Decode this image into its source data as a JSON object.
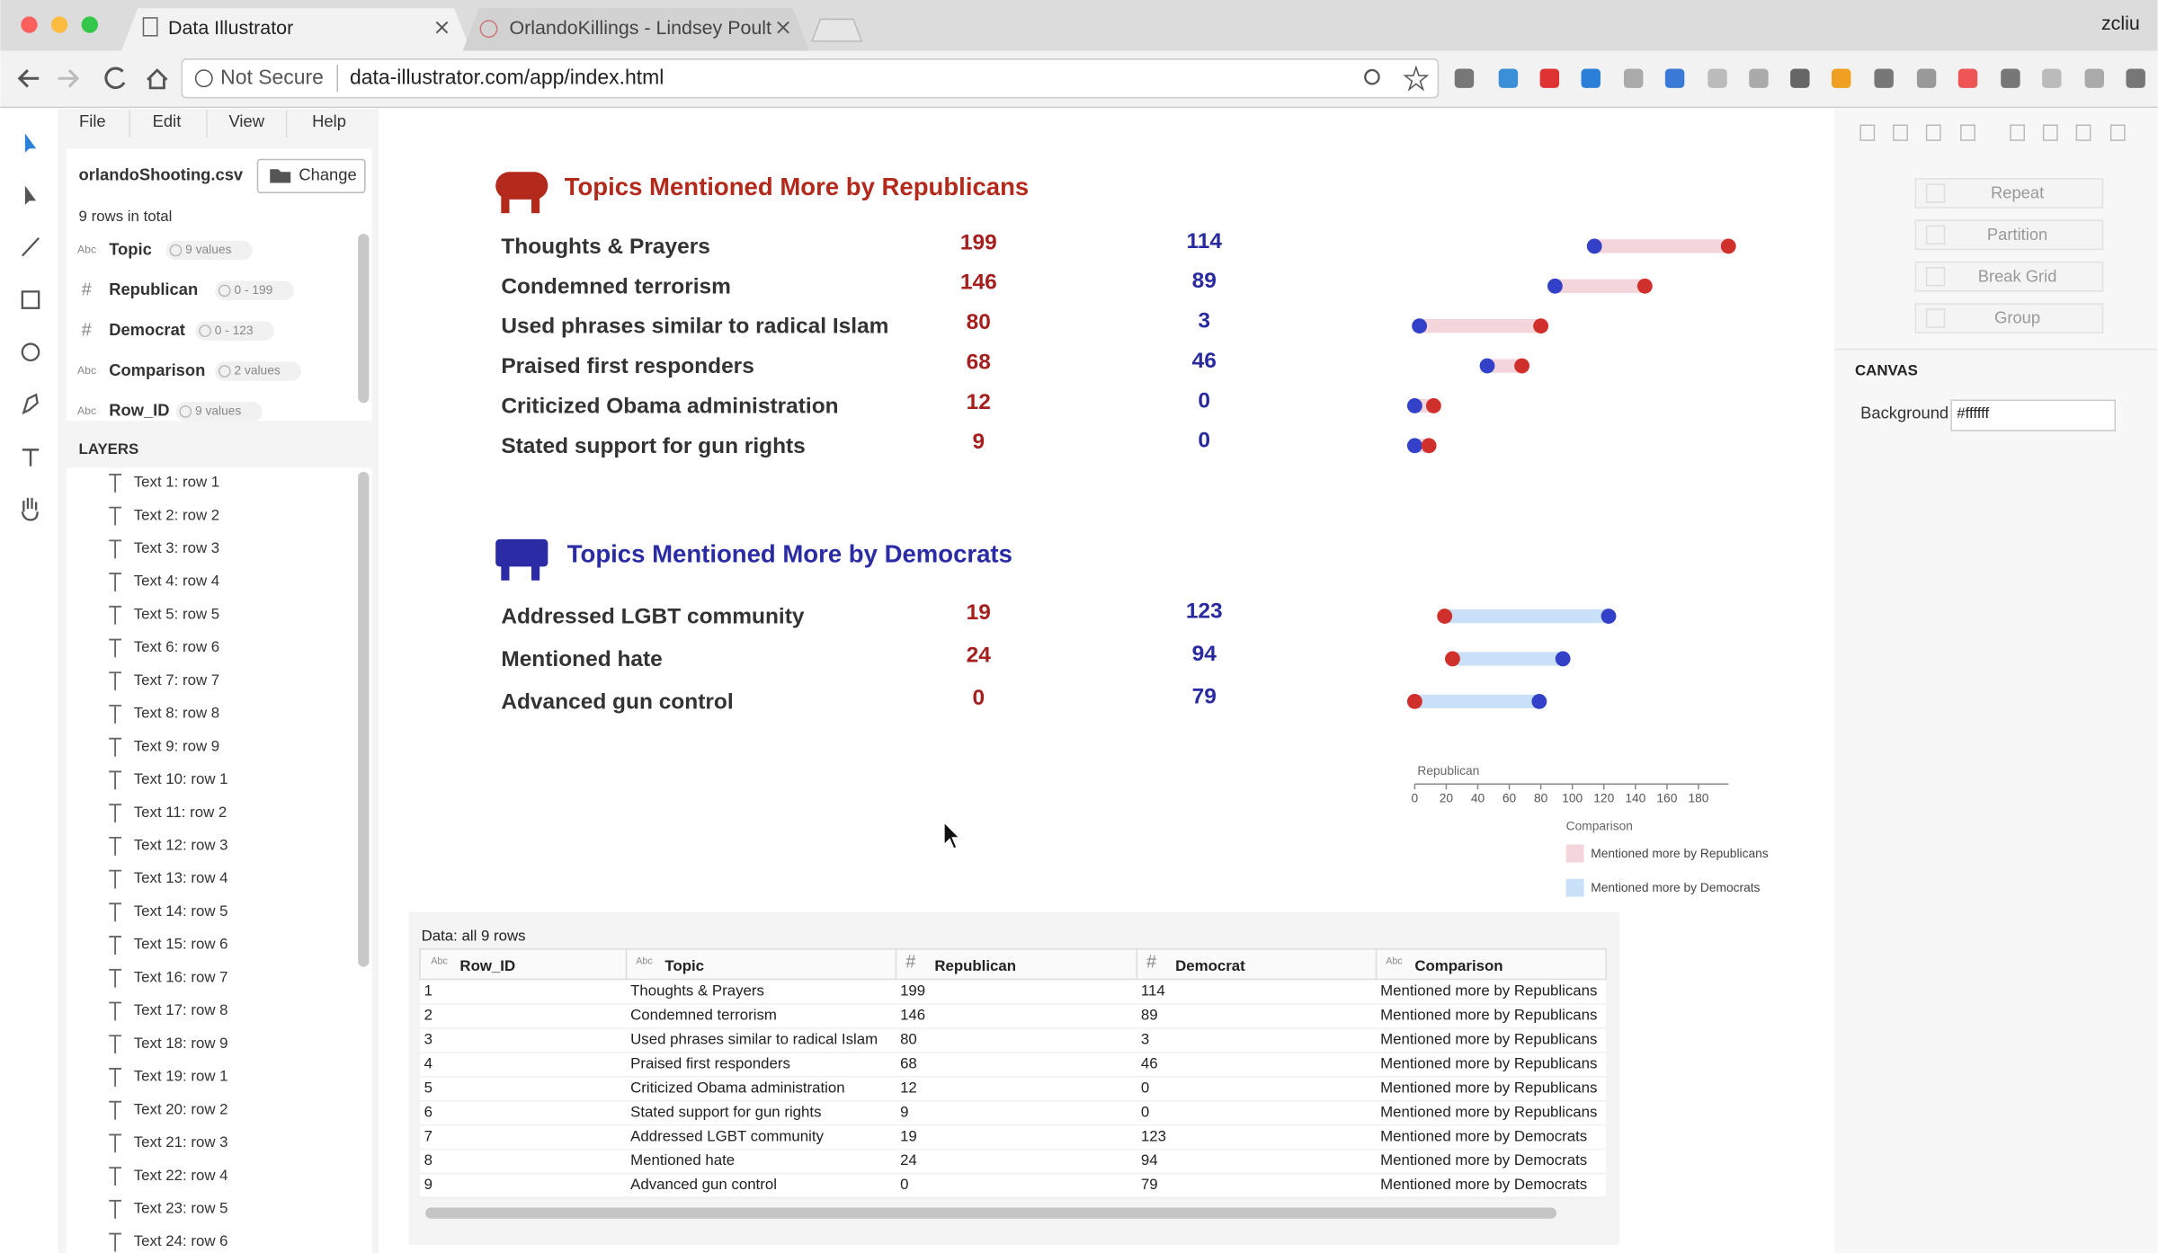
{
  "browser": {
    "tabs": [
      "Data Illustrator",
      "OrlandoKillings - Lindsey Poult"
    ],
    "user": "zcliu",
    "security": "Not Secure",
    "url": "data-illustrator.com/app/index.html"
  },
  "menu": [
    "File",
    "Edit",
    "View",
    "Help"
  ],
  "dataset": {
    "file": "orlandoShooting.csv",
    "change": "Change",
    "summary": "9 rows in total",
    "fields": [
      {
        "type": "Abc",
        "name": "Topic",
        "info": "9 values"
      },
      {
        "type": "#",
        "name": "Republican",
        "info": "0 - 199"
      },
      {
        "type": "#",
        "name": "Democrat",
        "info": "0 - 123"
      },
      {
        "type": "Abc",
        "name": "Comparison",
        "info": "2 values"
      },
      {
        "type": "Abc",
        "name": "Row_ID",
        "info": "9 values"
      }
    ]
  },
  "layers": {
    "title": "LAYERS",
    "items": [
      "Text 1: row 1",
      "Text 2: row 2",
      "Text 3: row 3",
      "Text 4: row 4",
      "Text 5: row 5",
      "Text 6: row 6",
      "Text 7: row 7",
      "Text 8: row 8",
      "Text 9: row 9",
      "Text 10: row 1",
      "Text 11: row 2",
      "Text 12: row 3",
      "Text 13: row 4",
      "Text 14: row 5",
      "Text 15: row 6",
      "Text 16: row 7",
      "Text 17: row 8",
      "Text 18: row 9",
      "Text 19: row 1",
      "Text 20: row 2",
      "Text 21: row 3",
      "Text 22: row 4",
      "Text 23: row 5",
      "Text 24: row 6"
    ]
  },
  "canvas": {
    "groups": [
      {
        "title": "Topics Mentioned More by Republicans",
        "color": "#b32a1c",
        "bar_color": "#f5d5dc",
        "rows": [
          {
            "topic": "Thoughts & Prayers",
            "republican": 199,
            "democrat": 114
          },
          {
            "topic": "Condemned terrorism",
            "republican": 146,
            "democrat": 89
          },
          {
            "topic": "Used phrases similar to radical Islam",
            "republican": 80,
            "democrat": 3
          },
          {
            "topic": "Praised first responders",
            "republican": 68,
            "democrat": 46
          },
          {
            "topic": "Criticized Obama administration",
            "republican": 12,
            "democrat": 0
          },
          {
            "topic": "Stated support for gun rights",
            "republican": 9,
            "democrat": 0
          }
        ]
      },
      {
        "title": "Topics Mentioned More by Democrats",
        "color": "#2b2ba6",
        "bar_color": "#c8e1f8",
        "rows": [
          {
            "topic": "Addressed LGBT community",
            "republican": 19,
            "democrat": 123
          },
          {
            "topic": "Mentioned hate",
            "republican": 24,
            "democrat": 94
          },
          {
            "topic": "Advanced gun control",
            "republican": 0,
            "democrat": 79
          }
        ]
      }
    ],
    "republican_color": "#d0302c",
    "democrat_color": "#3340c8",
    "republican_text_color": "#a51f1f",
    "democrat_text_color": "#2a2aa0",
    "axis": {
      "title": "Republican",
      "lim": [
        0,
        199
      ],
      "ticks": [
        0,
        20,
        40,
        60,
        80,
        100,
        120,
        140,
        160,
        180
      ]
    },
    "legend": {
      "title": "Comparison",
      "items": [
        "Mentioned more by Republicans",
        "Mentioned more by Democrats"
      ]
    }
  },
  "table": {
    "caption": "Data: all 9 rows",
    "columns": [
      {
        "type": "Abc",
        "name": "Row_ID"
      },
      {
        "type": "Abc",
        "name": "Topic"
      },
      {
        "type": "#",
        "name": "Republican"
      },
      {
        "type": "#",
        "name": "Democrat"
      },
      {
        "type": "Abc",
        "name": "Comparison"
      }
    ],
    "rows": [
      [
        1,
        "Thoughts & Prayers",
        199,
        114,
        "Mentioned more by Republicans"
      ],
      [
        2,
        "Condemned terrorism",
        146,
        89,
        "Mentioned more by Republicans"
      ],
      [
        3,
        "Used phrases similar to radical Islam",
        80,
        3,
        "Mentioned more by Republicans"
      ],
      [
        4,
        "Praised first responders",
        68,
        46,
        "Mentioned more by Republicans"
      ],
      [
        5,
        "Criticized Obama administration",
        12,
        0,
        "Mentioned more by Republicans"
      ],
      [
        6,
        "Stated support for gun rights",
        9,
        0,
        "Mentioned more by Republicans"
      ],
      [
        7,
        "Addressed LGBT community",
        19,
        123,
        "Mentioned more by Democrats"
      ],
      [
        8,
        "Mentioned hate",
        24,
        94,
        "Mentioned more by Democrats"
      ],
      [
        9,
        "Advanced gun control",
        0,
        79,
        "Mentioned more by Democrats"
      ]
    ]
  },
  "panel": {
    "buttons": [
      "Repeat",
      "Partition",
      "Break Grid",
      "Group"
    ],
    "canvas_title": "CANVAS",
    "background_label": "Background",
    "background_value": "#ffffff"
  }
}
